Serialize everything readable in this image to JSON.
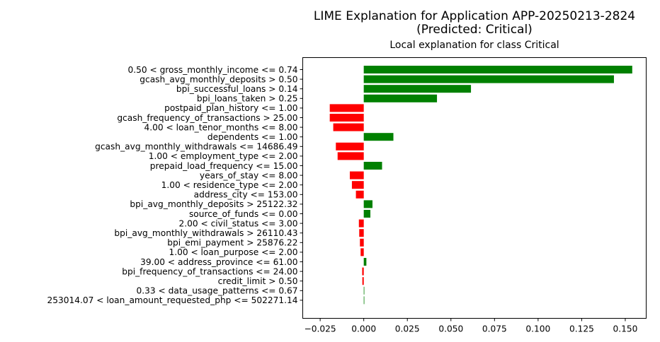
{
  "figure": {
    "suptitle_line1": "LIME Explanation for Application APP-20250213-2824",
    "suptitle_line2": "(Predicted: Critical)"
  },
  "colors": {
    "positive": "#008000",
    "negative": "#ff0000"
  },
  "chart_data": {
    "type": "bar",
    "orientation": "horizontal",
    "title": "Local explanation for class Critical",
    "xlabel": "",
    "ylabel": "",
    "xlim": [
      -0.035,
      0.162
    ],
    "xticks": [
      -0.025,
      0.0,
      0.025,
      0.05,
      0.075,
      0.1,
      0.125,
      0.15
    ],
    "xtick_labels": [
      "−0.025",
      "0.000",
      "0.025",
      "0.050",
      "0.075",
      "0.100",
      "0.125",
      "0.150"
    ],
    "grid": false,
    "categories": [
      "0.50 < gross_monthly_income <= 0.74",
      "gcash_avg_monthly_deposits > 0.50",
      "bpi_successful_loans > 0.14",
      "bpi_loans_taken > 0.25",
      "postpaid_plan_history <= 1.00",
      "gcash_frequency_of_transactions > 25.00",
      "4.00 < loan_tenor_months <= 8.00",
      "dependents <= 1.00",
      "gcash_avg_monthly_withdrawals <= 14686.49",
      "1.00 < employment_type <= 2.00",
      "prepaid_load_frequency <= 15.00",
      "years_of_stay <= 8.00",
      "1.00 < residence_type <= 2.00",
      "address_city <= 153.00",
      "bpi_avg_monthly_deposits > 25122.32",
      "source_of_funds <= 0.00",
      "2.00 < civil_status <= 3.00",
      "bpi_avg_monthly_withdrawals > 26110.43",
      "bpi_emi_payment > 25876.22",
      "1.00 < loan_purpose <= 2.00",
      "39.00 < address_province <= 61.00",
      "bpi_frequency_of_transactions <= 24.00",
      "credit_limit > 0.50",
      "0.33 < data_usage_patterns <= 0.67",
      "253014.07 < loan_amount_requested_php <= 502271.14"
    ],
    "values": [
      0.154,
      0.1435,
      0.0615,
      0.042,
      -0.0195,
      -0.0195,
      -0.0175,
      0.017,
      -0.016,
      -0.015,
      0.0105,
      -0.008,
      -0.0068,
      -0.0045,
      0.005,
      0.0038,
      -0.0028,
      -0.0026,
      -0.0022,
      -0.0018,
      0.0015,
      -0.0009,
      -0.0008,
      0.0003,
      0.0
    ]
  }
}
